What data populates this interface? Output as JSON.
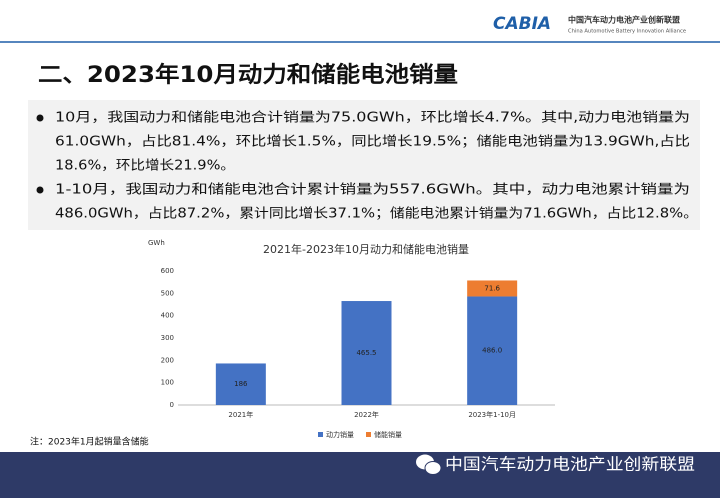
{
  "header": {
    "logo": "CABIA",
    "org_name": "中国汽车动力电池产业创新联盟",
    "org_name_en": "China Automotive Battery Innovation Alliance"
  },
  "title": "二、2023年10月动力和储能电池销量",
  "bullets": [
    [
      "10月，我国动力和储能电池合计销量为75.0GWh，环比增长4.7%。其中,动力电池销量为",
      "61.0GWh，占比81.4%，环比增长1.5%，同比增长19.5%；储能电池销量为13.9GWh,占比",
      "18.6%，环比增长21.9%。"
    ],
    [
      "1-10月，我国动力和储能电池合计累计销量为557.6GWh。其中，动力电池累计销量为",
      "486.0GWh，占比87.2%，累计同比增长37.1%；储能电池累计销量为71.6GWh，占比12.8%。"
    ]
  ],
  "chart_data": {
    "type": "stacked_bar",
    "title": "2021年-2023年10月动力和储能电池销量",
    "y_label": "GWh",
    "categories": [
      "2021年",
      "2022年",
      "2023年1-10月"
    ],
    "series": [
      {
        "name": "动力销量",
        "color": "#4472c4",
        "values": [
          186,
          465.5,
          486
        ],
        "value_labels": [
          "186",
          "465.5",
          "486.0"
        ]
      },
      {
        "name": "储能销量",
        "color": "#ed7d31",
        "values": [
          null,
          null,
          71.6
        ],
        "value_labels": [
          null,
          null,
          "71.6"
        ]
      }
    ],
    "ylim": [
      0,
      600
    ],
    "yticks": [
      0,
      100,
      200,
      300,
      400,
      500,
      600
    ],
    "grid": false,
    "legend": "bottom"
  },
  "note": "注：2023年1月起销量含储能",
  "footer": "中国汽车动力电池产业创新联盟"
}
